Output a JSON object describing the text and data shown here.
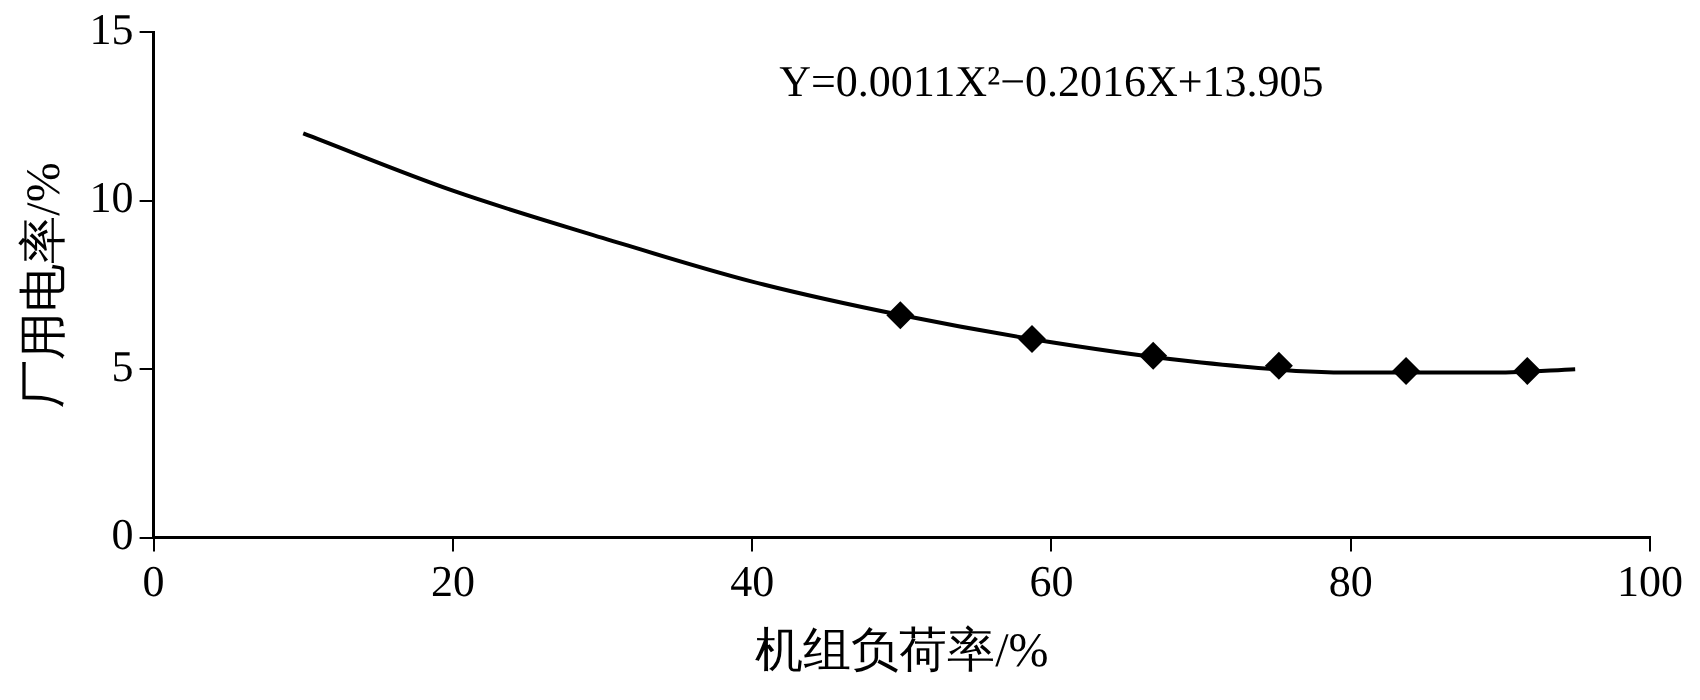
{
  "chart_data": {
    "type": "scatter",
    "xlabel": "机组负荷率/%",
    "ylabel": "厂用电率/%",
    "xlim": [
      0,
      100
    ],
    "xticks": [
      0,
      20,
      40,
      60,
      80,
      100
    ],
    "ylim": [
      0,
      15
    ],
    "yticks": [
      0,
      5,
      10,
      15
    ],
    "grid": false,
    "legend": false,
    "annotations": [
      "Y=0.0011X²−0.2016X+13.905"
    ],
    "series": [
      {
        "type": "scatter",
        "color": "#000000",
        "marker": "diamond",
        "x": [
          49.9,
          58.7,
          66.8,
          75.2,
          83.7,
          91.8
        ],
        "values": [
          6.6,
          5.9,
          5.4,
          5.1,
          4.95,
          4.95
        ]
      },
      {
        "type": "line",
        "color": "#000000",
        "marker": "none",
        "line_style": "solid",
        "x": [
          10,
          20,
          30,
          40,
          50,
          60,
          70,
          80,
          90,
          95
        ],
        "values": [
          12.0,
          10.3,
          8.9,
          7.6,
          6.6,
          5.8,
          5.2,
          4.9,
          4.9,
          5.0
        ]
      }
    ]
  }
}
